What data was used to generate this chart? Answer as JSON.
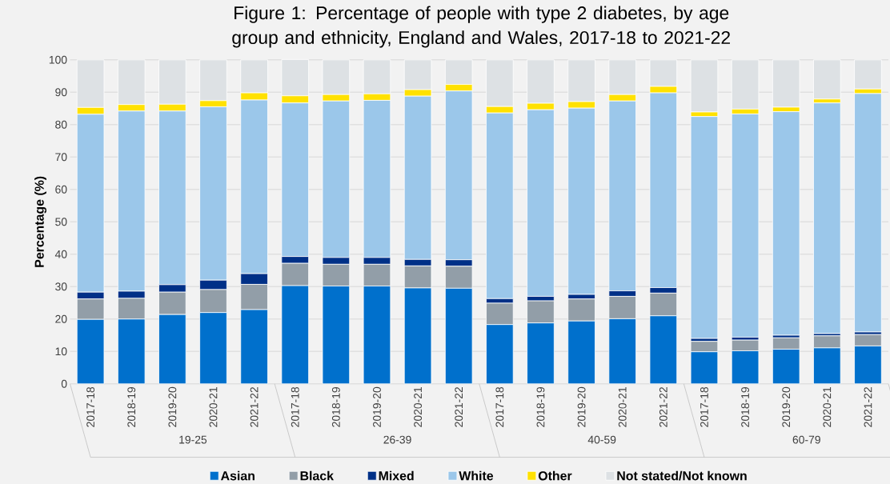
{
  "chart_data": {
    "type": "bar",
    "stacked": true,
    "title": "Figure 1: Percentage of people with type 2 diabetes, by age group and ethnicity, England and Wales, 2017-18 to 2021-22",
    "ylabel": "Percentage (%)",
    "categories": [
      "2017-18",
      "2018-19",
      "2019-20",
      "2020-21",
      "2021-22",
      "2017-18",
      "2018-19",
      "2019-20",
      "2020-21",
      "2021-22",
      "2017-18",
      "2018-19",
      "2019-20",
      "2020-21",
      "2021-22",
      "2017-18",
      "2018-19",
      "2019-20",
      "2020-21",
      "2021-22"
    ],
    "annotations": [
      "19-25",
      "26-39",
      "40-59",
      "60-79"
    ],
    "ylim": [
      0,
      100
    ],
    "yticks": [
      0,
      10,
      20,
      30,
      40,
      50,
      60,
      70,
      80,
      90,
      100
    ],
    "grid": "y",
    "legend": "bottom",
    "series": [
      {
        "name": "Asian",
        "color": "#0070cc",
        "values": [
          19.9,
          20.0,
          21.4,
          22.0,
          22.9,
          30.3,
          30.2,
          30.2,
          29.6,
          29.5,
          18.3,
          18.8,
          19.4,
          20.1,
          21.0,
          9.9,
          10.2,
          10.7,
          11.1,
          11.7
        ]
      },
      {
        "name": "Black",
        "color": "#929ea8",
        "values": [
          6.3,
          6.4,
          6.9,
          7.1,
          7.8,
          6.9,
          6.7,
          6.7,
          6.8,
          6.8,
          6.6,
          6.8,
          6.8,
          6.9,
          7.0,
          3.2,
          3.3,
          3.5,
          3.7,
          3.5
        ]
      },
      {
        "name": "Mixed",
        "color": "#003087",
        "values": [
          2.1,
          2.2,
          2.3,
          2.9,
          3.3,
          2.1,
          2.1,
          2.1,
          2.0,
          2.0,
          1.4,
          1.4,
          1.4,
          1.7,
          1.7,
          0.9,
          0.9,
          0.8,
          0.7,
          0.8
        ]
      },
      {
        "name": "White",
        "color": "#9bc7ea",
        "values": [
          54.9,
          55.6,
          53.6,
          53.5,
          53.6,
          47.4,
          48.3,
          48.5,
          50.4,
          52.1,
          57.3,
          57.6,
          57.5,
          58.6,
          60.1,
          68.5,
          68.9,
          69.0,
          71.2,
          73.6
        ]
      },
      {
        "name": "Other",
        "color": "#ffe100",
        "values": [
          2.1,
          2.0,
          2.1,
          1.9,
          2.2,
          2.2,
          2.0,
          2.0,
          2.0,
          2.0,
          2.0,
          2.0,
          2.0,
          2.0,
          2.0,
          1.4,
          1.5,
          1.4,
          1.2,
          1.4
        ]
      },
      {
        "name": "Not stated/Not known",
        "color": "#dde1e4",
        "values": [
          14.7,
          13.8,
          13.7,
          12.6,
          10.2,
          11.2,
          10.7,
          10.5,
          9.2,
          7.6,
          14.4,
          13.4,
          12.9,
          10.7,
          8.2,
          16.1,
          15.2,
          14.6,
          12.1,
          9.0
        ]
      }
    ]
  }
}
